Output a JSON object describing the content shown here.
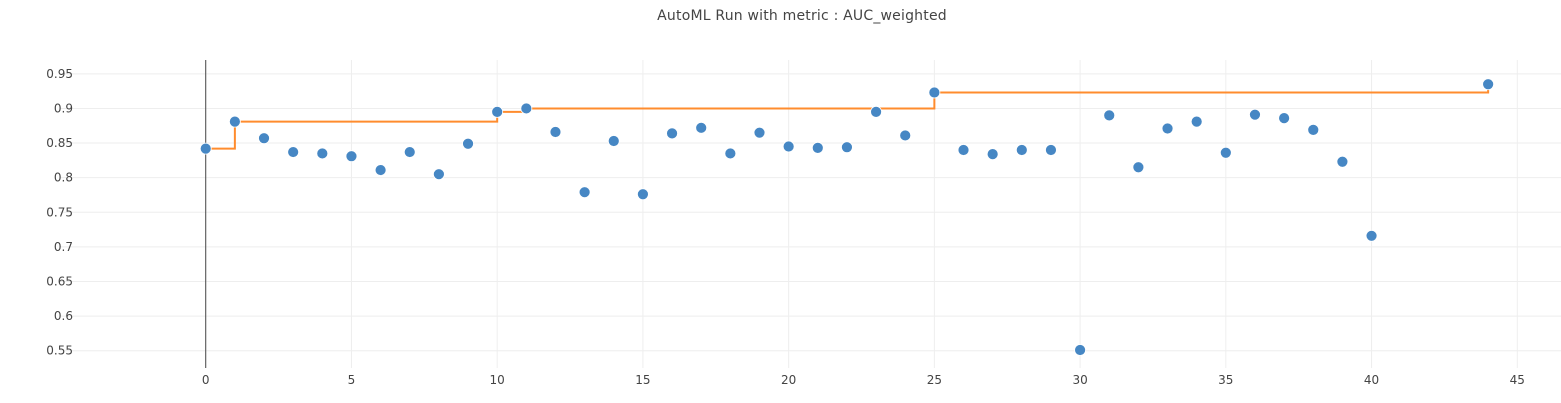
{
  "chart_data": {
    "type": "scatter",
    "title": "AutoML Run with metric : AUC_weighted",
    "xlabel": "",
    "ylabel": "",
    "xlim": [
      -5,
      46.5
    ],
    "ylim": [
      0.525,
      0.97
    ],
    "x_ticks": [
      0,
      5,
      10,
      15,
      20,
      25,
      30,
      35,
      40,
      45
    ],
    "y_ticks": [
      0.55,
      0.6,
      0.65,
      0.7,
      0.75,
      0.8,
      0.85,
      0.9,
      0.95
    ],
    "y_tick_labels": [
      "0.55",
      "0.6",
      "0.65",
      "0.7",
      "0.75",
      "0.8",
      "0.85",
      "0.9",
      "0.95"
    ],
    "grid": true,
    "colors": {
      "points": "#4687c4",
      "best_line": "#ff8c2e",
      "grid": "#eeeeee",
      "zero_line": "#444444"
    },
    "series": [
      {
        "type": "scatter",
        "x": [
          0,
          1,
          2,
          3,
          4,
          5,
          6,
          7,
          8,
          9,
          10,
          11,
          12,
          13,
          14,
          15,
          16,
          17,
          18,
          19,
          20,
          21,
          22,
          23,
          24,
          25,
          26,
          27,
          28,
          29,
          30,
          31,
          32,
          33,
          34,
          35,
          36,
          37,
          38,
          39,
          40,
          44
        ],
        "y": [
          0.842,
          0.881,
          0.857,
          0.837,
          0.835,
          0.831,
          0.811,
          0.837,
          0.805,
          0.849,
          0.895,
          0.9,
          0.866,
          0.779,
          0.853,
          0.776,
          0.864,
          0.872,
          0.835,
          0.865,
          0.845,
          0.843,
          0.844,
          0.895,
          0.861,
          0.923,
          0.84,
          0.834,
          0.84,
          0.84,
          0.551,
          0.89,
          0.815,
          0.871,
          0.881,
          0.836,
          0.891,
          0.886,
          0.869,
          0.823,
          0.716,
          0.935
        ]
      },
      {
        "type": "step",
        "x": [
          0,
          1,
          10,
          11,
          25,
          44
        ],
        "y": [
          0.842,
          0.881,
          0.895,
          0.9,
          0.923,
          0.935
        ]
      }
    ]
  }
}
